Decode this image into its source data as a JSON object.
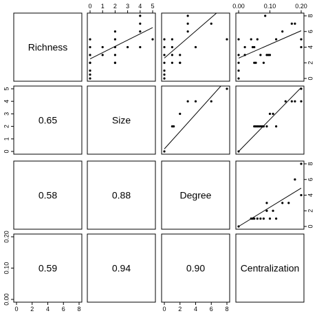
{
  "chart_data": {
    "type": "scatter-matrix",
    "variables": [
      "Richness",
      "Size",
      "Degree",
      "Centralization"
    ],
    "ranges": {
      "Richness": [
        0,
        8
      ],
      "Size": [
        0,
        5
      ],
      "Degree": [
        0,
        8
      ],
      "Centralization": [
        0,
        0.2
      ]
    },
    "ticks": {
      "Richness": [
        0,
        2,
        4,
        6,
        8
      ],
      "Size": [
        0,
        1,
        2,
        3,
        4,
        5
      ],
      "Degree": [
        0,
        2,
        4,
        6,
        8
      ],
      "Centralization": [
        0.0,
        0.1,
        0.2
      ]
    },
    "tick_labels": {
      "Richness": [
        "0",
        "2",
        "4",
        "6",
        "8"
      ],
      "Size": [
        "0",
        "1",
        "2",
        "3",
        "4",
        "5"
      ],
      "Degree": [
        "0",
        "2",
        "4",
        "6",
        "8"
      ],
      "Centralization": [
        "0.00",
        "0.10",
        "0.20"
      ]
    },
    "correlations": [
      {
        "row": "Size",
        "col": "Richness",
        "label": "0.65"
      },
      {
        "row": "Degree",
        "col": "Richness",
        "label": "0.58"
      },
      {
        "row": "Degree",
        "col": "Size",
        "label": "0.88"
      },
      {
        "row": "Centralization",
        "col": "Richness",
        "label": "0.59"
      },
      {
        "row": "Centralization",
        "col": "Size",
        "label": "0.94"
      },
      {
        "row": "Centralization",
        "col": "Degree",
        "label": "0.90"
      }
    ],
    "panels": [
      {
        "row": "Richness",
        "col": "Size",
        "points": [
          [
            0,
            0
          ],
          [
            0,
            0.5
          ],
          [
            0,
            1
          ],
          [
            0,
            2
          ],
          [
            0,
            2
          ],
          [
            0,
            3
          ],
          [
            0,
            4
          ],
          [
            0,
            5
          ],
          [
            1,
            3
          ],
          [
            1,
            4
          ],
          [
            2,
            2
          ],
          [
            2,
            2
          ],
          [
            2,
            3
          ],
          [
            2,
            4
          ],
          [
            2,
            5
          ],
          [
            2,
            6
          ],
          [
            3,
            4
          ],
          [
            4,
            4
          ],
          [
            4,
            6
          ],
          [
            4,
            7
          ],
          [
            4,
            8
          ],
          [
            5,
            5
          ]
        ],
        "fit": [
          [
            0,
            2.5
          ],
          [
            5,
            6.5
          ]
        ]
      },
      {
        "row": "Richness",
        "col": "Degree",
        "points": [
          [
            0,
            0
          ],
          [
            0,
            0.5
          ],
          [
            0,
            1
          ],
          [
            0,
            2
          ],
          [
            0,
            3
          ],
          [
            0,
            4
          ],
          [
            0,
            5
          ],
          [
            1,
            2
          ],
          [
            1,
            3
          ],
          [
            1,
            4
          ],
          [
            1,
            5
          ],
          [
            2,
            2
          ],
          [
            2,
            2
          ],
          [
            2,
            3
          ],
          [
            3,
            6
          ],
          [
            3,
            7
          ],
          [
            3,
            8
          ],
          [
            4,
            4
          ],
          [
            6,
            7
          ],
          [
            8,
            5
          ]
        ],
        "fit": [
          [
            0,
            2.6
          ],
          [
            8,
            9.5
          ]
        ]
      },
      {
        "row": "Richness",
        "col": "Centralization",
        "points": [
          [
            0.0,
            0
          ],
          [
            0.0,
            1
          ],
          [
            0.0,
            2
          ],
          [
            0.0,
            3
          ],
          [
            0.0,
            5
          ],
          [
            0.02,
            3
          ],
          [
            0.02,
            4
          ],
          [
            0.04,
            5
          ],
          [
            0.045,
            4
          ],
          [
            0.05,
            2
          ],
          [
            0.05,
            4
          ],
          [
            0.055,
            2
          ],
          [
            0.06,
            5
          ],
          [
            0.07,
            3
          ],
          [
            0.08,
            2
          ],
          [
            0.085,
            8
          ],
          [
            0.09,
            3
          ],
          [
            0.095,
            3
          ],
          [
            0.1,
            3
          ],
          [
            0.12,
            5
          ],
          [
            0.14,
            6
          ],
          [
            0.17,
            7
          ],
          [
            0.18,
            7
          ],
          [
            0.2,
            4
          ],
          [
            0.2,
            5
          ]
        ],
        "fit": [
          [
            0.0,
            2.6
          ],
          [
            0.2,
            6.1
          ]
        ]
      },
      {
        "row": "Size",
        "col": "Degree",
        "points": [
          [
            0,
            0
          ],
          [
            1,
            2
          ],
          [
            1.2,
            2
          ],
          [
            2,
            3
          ],
          [
            3,
            4
          ],
          [
            4,
            4
          ],
          [
            6,
            4
          ],
          [
            8,
            5
          ]
        ],
        "fit": [
          [
            0,
            0.2
          ],
          [
            7.2,
            5.2
          ]
        ]
      },
      {
        "row": "Size",
        "col": "Centralization",
        "points": [
          [
            0.0,
            0
          ],
          [
            0.05,
            2
          ],
          [
            0.055,
            2
          ],
          [
            0.06,
            2
          ],
          [
            0.065,
            2
          ],
          [
            0.07,
            2
          ],
          [
            0.075,
            2
          ],
          [
            0.08,
            2
          ],
          [
            0.09,
            2
          ],
          [
            0.1,
            3
          ],
          [
            0.11,
            3
          ],
          [
            0.12,
            2
          ],
          [
            0.15,
            4
          ],
          [
            0.17,
            4
          ],
          [
            0.18,
            4
          ],
          [
            0.2,
            4
          ],
          [
            0.2,
            5
          ]
        ],
        "fit": [
          [
            0.0,
            0
          ],
          [
            0.2,
            5.1
          ]
        ]
      },
      {
        "row": "Degree",
        "col": "Centralization",
        "points": [
          [
            0.0,
            0
          ],
          [
            0.04,
            1
          ],
          [
            0.045,
            1
          ],
          [
            0.05,
            1
          ],
          [
            0.06,
            1
          ],
          [
            0.07,
            1
          ],
          [
            0.08,
            1
          ],
          [
            0.09,
            2
          ],
          [
            0.09,
            3
          ],
          [
            0.1,
            1
          ],
          [
            0.11,
            2
          ],
          [
            0.12,
            1
          ],
          [
            0.14,
            3
          ],
          [
            0.16,
            3
          ],
          [
            0.18,
            6
          ],
          [
            0.2,
            4
          ],
          [
            0.2,
            8
          ]
        ],
        "fit": [
          [
            0.0,
            0
          ],
          [
            0.2,
            4.9
          ]
        ]
      }
    ]
  }
}
